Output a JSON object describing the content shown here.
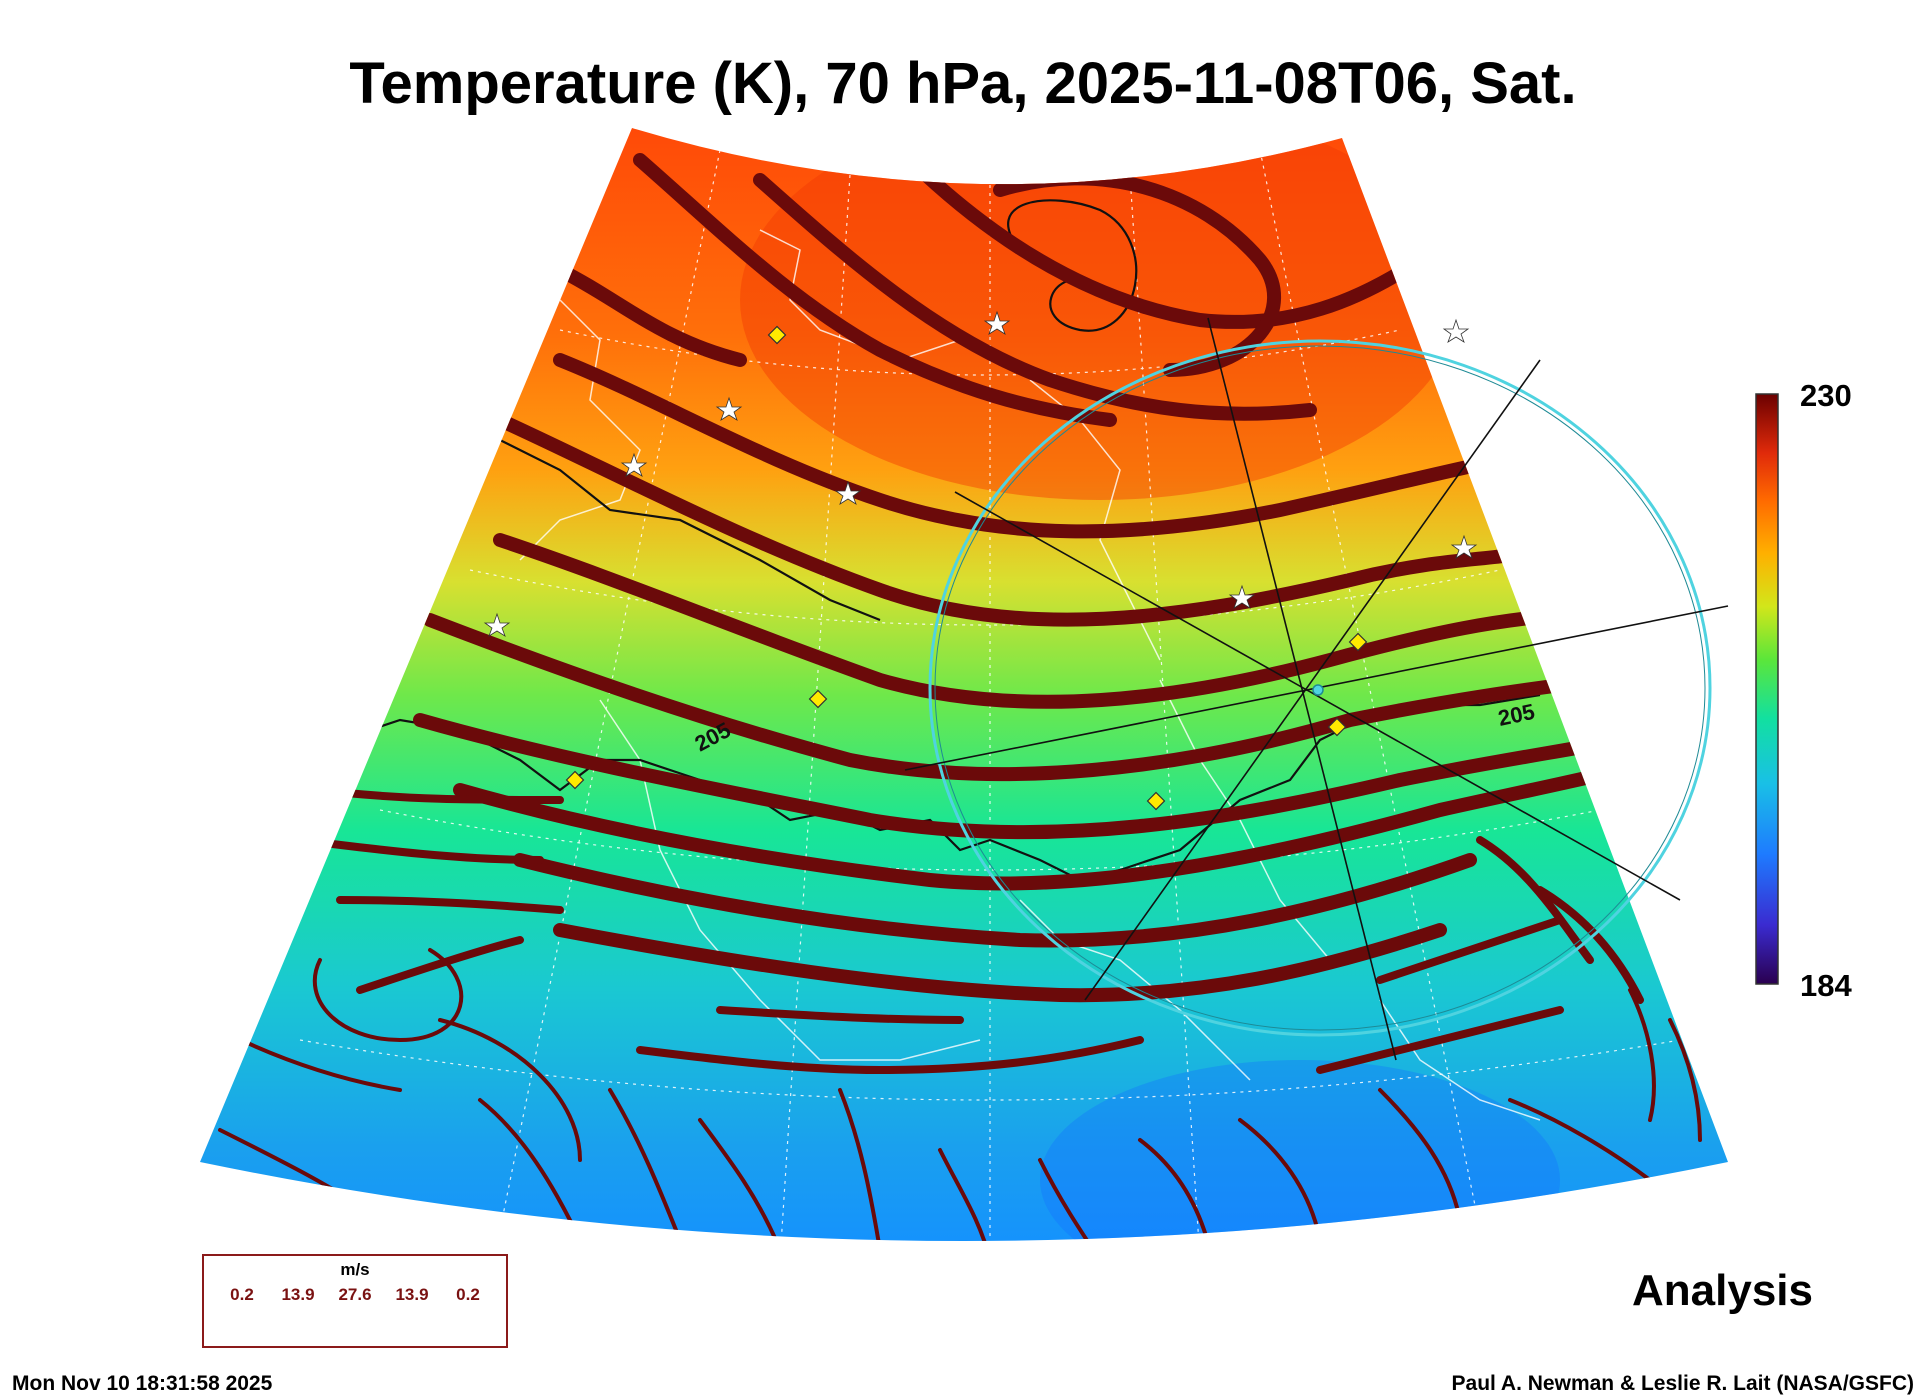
{
  "title": "Temperature (K), 70 hPa, 2025-11-08T06, Sat.",
  "colorbar": {
    "max": "230",
    "min": "184",
    "colors": [
      "#2a004f",
      "#3a2bd0",
      "#1e7bff",
      "#19c0e6",
      "#12e0a0",
      "#5be63a",
      "#d2e61a",
      "#ffb000",
      "#ff6a00",
      "#e02a0a",
      "#6b0000"
    ]
  },
  "contour_labels": [
    "205",
    "205"
  ],
  "legend": {
    "unit": "m/s",
    "values": [
      "0.2",
      "13.9",
      "27.6",
      "13.9",
      "0.2"
    ]
  },
  "panel_label": "Analysis",
  "timestamp": "Mon Nov 10 18:31:58 2025",
  "credit": "Paul A. Newman & Leslie R. Lait (NASA/GSFC)",
  "colors": {
    "streamline": "#6b0a0a",
    "contour": "#111111",
    "sonde_marker": "#ffea00",
    "site_star": "#ffffff",
    "range_ring": "#4fd3e0"
  }
}
